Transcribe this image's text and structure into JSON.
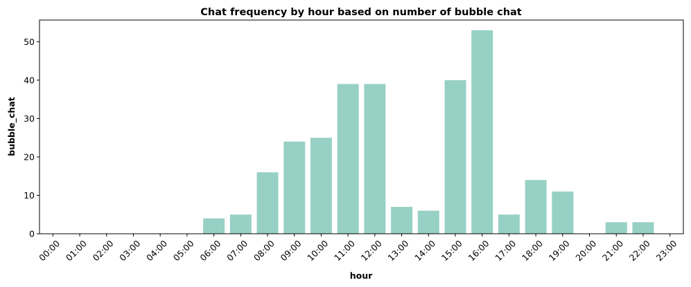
{
  "chart_data": {
    "type": "bar",
    "title": "Chat frequency by hour based on number of bubble chat",
    "xlabel": "hour",
    "ylabel": "bubble_chat",
    "categories": [
      "00:00",
      "01:00",
      "02:00",
      "03:00",
      "04:00",
      "05:00",
      "06:00",
      "07:00",
      "08:00",
      "09:00",
      "10:00",
      "11:00",
      "12:00",
      "13:00",
      "14:00",
      "15:00",
      "16:00",
      "17:00",
      "18:00",
      "19:00",
      "20:00",
      "21:00",
      "22:00",
      "23:00"
    ],
    "values": [
      0,
      0,
      0,
      0,
      0,
      0,
      4,
      5,
      16,
      24,
      25,
      39,
      39,
      7,
      6,
      40,
      53,
      5,
      14,
      11,
      0,
      3,
      3,
      0
    ],
    "ylim": [
      0,
      55.65
    ],
    "yticks": [
      0,
      10,
      20,
      30,
      40,
      50
    ],
    "grid": false,
    "colors": {
      "bar": "#97d0c5",
      "axis": "#000000"
    }
  }
}
